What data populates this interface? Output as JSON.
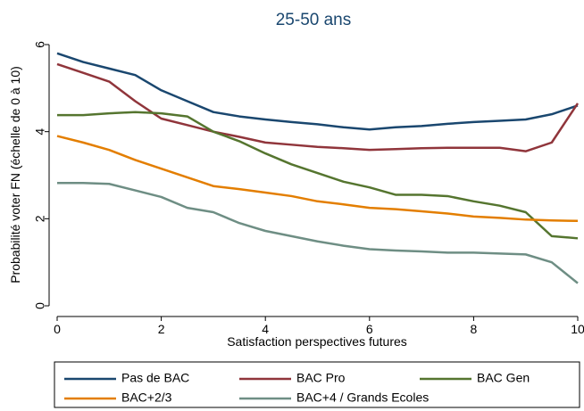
{
  "chart_data": {
    "type": "line",
    "title": "25-50 ans",
    "xlabel": "Satisfaction perspectives futures",
    "ylabel": "Probabilité voter FN (échelle de 0 à 10)",
    "x": [
      0,
      0.5,
      1,
      1.5,
      2,
      2.5,
      3,
      3.5,
      4,
      4.5,
      5,
      5.5,
      6,
      6.5,
      7,
      7.5,
      8,
      8.5,
      9,
      9.5,
      10
    ],
    "series": [
      {
        "name": "Pas de BAC",
        "color": "#1a476f",
        "values": [
          5.8,
          5.6,
          5.45,
          5.3,
          4.95,
          4.7,
          4.45,
          4.35,
          4.28,
          4.22,
          4.17,
          4.1,
          4.05,
          4.1,
          4.13,
          4.18,
          4.22,
          4.25,
          4.28,
          4.4,
          4.6
        ]
      },
      {
        "name": "BAC Pro",
        "color": "#90353b",
        "values": [
          5.55,
          5.35,
          5.15,
          4.7,
          4.3,
          4.15,
          4.0,
          3.88,
          3.75,
          3.7,
          3.65,
          3.62,
          3.58,
          3.6,
          3.62,
          3.63,
          3.63,
          3.63,
          3.55,
          3.75,
          4.65
        ]
      },
      {
        "name": "BAC Gen",
        "color": "#55752f",
        "values": [
          4.38,
          4.38,
          4.42,
          4.45,
          4.42,
          4.35,
          4.0,
          3.78,
          3.5,
          3.25,
          3.05,
          2.85,
          2.72,
          2.55,
          2.55,
          2.52,
          2.4,
          2.3,
          2.15,
          1.6,
          1.55
        ]
      },
      {
        "name": "BAC+2/3",
        "color": "#e37e00",
        "values": [
          3.9,
          3.75,
          3.58,
          3.35,
          3.15,
          2.95,
          2.75,
          2.68,
          2.6,
          2.52,
          2.4,
          2.33,
          2.25,
          2.22,
          2.17,
          2.12,
          2.05,
          2.02,
          1.98,
          1.96,
          1.95
        ]
      },
      {
        "name": "BAC+4 / Grands Ecoles",
        "color": "#6e8e84",
        "values": [
          2.82,
          2.82,
          2.8,
          2.65,
          2.5,
          2.25,
          2.15,
          1.9,
          1.72,
          1.6,
          1.48,
          1.38,
          1.3,
          1.27,
          1.25,
          1.22,
          1.22,
          1.2,
          1.18,
          1.0,
          0.52
        ]
      }
    ],
    "xlim": [
      0,
      10
    ],
    "xticks": [
      0,
      2,
      4,
      6,
      8,
      10
    ],
    "ylim": [
      0,
      6
    ],
    "yticks": [
      0,
      2,
      4,
      6
    ]
  }
}
